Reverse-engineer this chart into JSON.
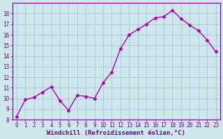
{
  "x": [
    0,
    1,
    2,
    3,
    4,
    5,
    6,
    7,
    8,
    9,
    10,
    11,
    12,
    13,
    14,
    15,
    16,
    17,
    18,
    19,
    20,
    21,
    22,
    23
  ],
  "y": [
    8.3,
    9.9,
    10.1,
    10.6,
    11.1,
    9.8,
    8.9,
    10.3,
    10.2,
    10.0,
    11.5,
    12.5,
    14.7,
    16.0,
    16.5,
    17.0,
    17.6,
    17.7,
    18.3,
    17.5,
    16.9,
    16.4,
    15.5,
    14.4
  ],
  "line_color": "#aa00aa",
  "marker": "D",
  "markersize": 2.5,
  "linewidth": 1.0,
  "xlabel": "Windchill (Refroidissement éolien,°C)",
  "xlim_min": -0.5,
  "xlim_max": 23.5,
  "ylim_min": 8,
  "ylim_max": 19,
  "yticks": [
    8,
    9,
    10,
    11,
    12,
    13,
    14,
    15,
    16,
    17,
    18
  ],
  "xticks": [
    0,
    1,
    2,
    3,
    4,
    5,
    6,
    7,
    8,
    9,
    10,
    11,
    12,
    13,
    14,
    15,
    16,
    17,
    18,
    19,
    20,
    21,
    22,
    23
  ],
  "bg_color": "#cce8ec",
  "grid_color": "#aabbd0",
  "line_border_color": "#7700aa",
  "tick_color": "#770077",
  "label_color": "#770077",
  "tick_fontsize": 5.5,
  "xlabel_fontsize": 6.5
}
